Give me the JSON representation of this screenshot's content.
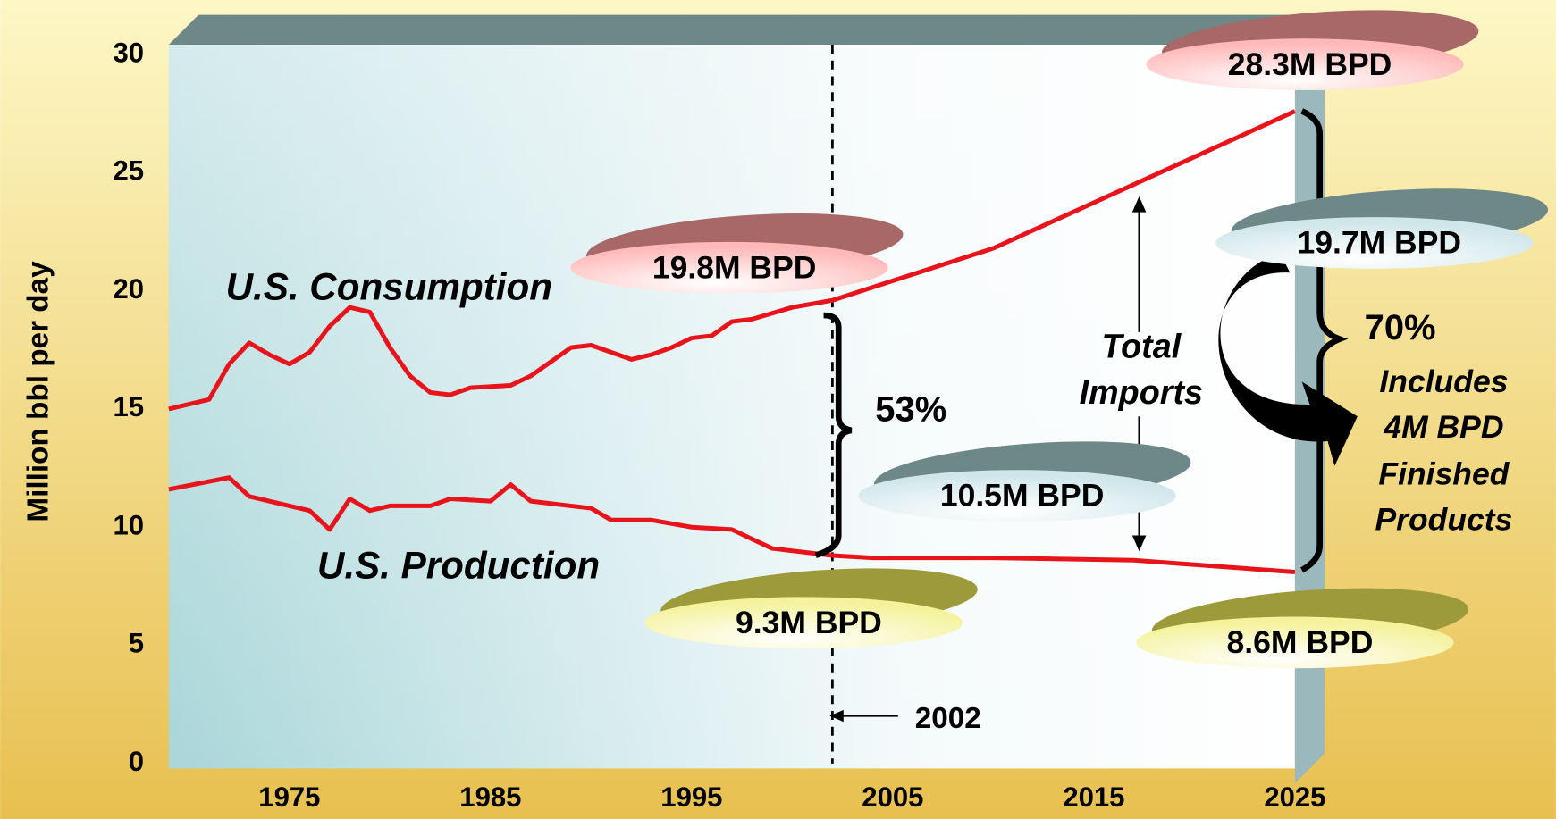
{
  "chart_data": {
    "type": "line",
    "ylabel": "Million bbl per day",
    "xlim": [
      1969,
      2025
    ],
    "ylim": [
      0,
      30
    ],
    "xticks": [
      1975,
      1985,
      1995,
      2005,
      2015,
      2025
    ],
    "yticks": [
      0,
      5,
      10,
      15,
      20,
      25,
      30
    ],
    "grid": false,
    "series": [
      {
        "name": "U.S. Consumption",
        "color": "#e8141c",
        "x": [
          1969,
          1971,
          1972,
          1973,
          1974,
          1975,
          1976,
          1977,
          1978,
          1979,
          1980,
          1981,
          1982,
          1983,
          1984,
          1986,
          1987,
          1988,
          1989,
          1990,
          1992,
          1993,
          1994,
          1995,
          1996,
          1997,
          1998,
          2000,
          2002,
          2010,
          2025
        ],
        "values": [
          15.0,
          15.4,
          16.9,
          17.8,
          17.3,
          16.9,
          17.4,
          18.5,
          19.3,
          19.1,
          17.6,
          16.4,
          15.7,
          15.6,
          15.9,
          16.0,
          16.4,
          17.0,
          17.6,
          17.7,
          17.1,
          17.3,
          17.6,
          18.0,
          18.1,
          18.7,
          18.8,
          19.3,
          19.6,
          21.8,
          27.6
        ]
      },
      {
        "name": "U.S. Production",
        "color": "#e8141c",
        "x": [
          1969,
          1972,
          1973,
          1975,
          1976,
          1977,
          1978,
          1979,
          1980,
          1982,
          1983,
          1985,
          1986,
          1987,
          1990,
          1991,
          1993,
          1995,
          1997,
          1998,
          1999,
          2002,
          2004,
          2010,
          2017,
          2025
        ],
        "values": [
          11.6,
          12.1,
          11.3,
          10.9,
          10.7,
          9.9,
          11.2,
          10.7,
          10.9,
          10.9,
          11.2,
          11.1,
          11.8,
          11.1,
          10.8,
          10.3,
          10.3,
          10.0,
          9.9,
          9.5,
          9.1,
          8.8,
          8.7,
          8.7,
          8.6,
          8.1
        ]
      }
    ],
    "vline_x": 2002,
    "callouts": [
      "28.3M BPD",
      "19.8M BPD",
      "19.7M BPD",
      "10.5M BPD",
      "9.3M BPD",
      "8.6M BPD"
    ],
    "annotations": [
      "53%",
      "70%",
      "Total",
      "Imports",
      "Includes",
      "4M BPD",
      "Finished",
      "Products"
    ]
  }
}
